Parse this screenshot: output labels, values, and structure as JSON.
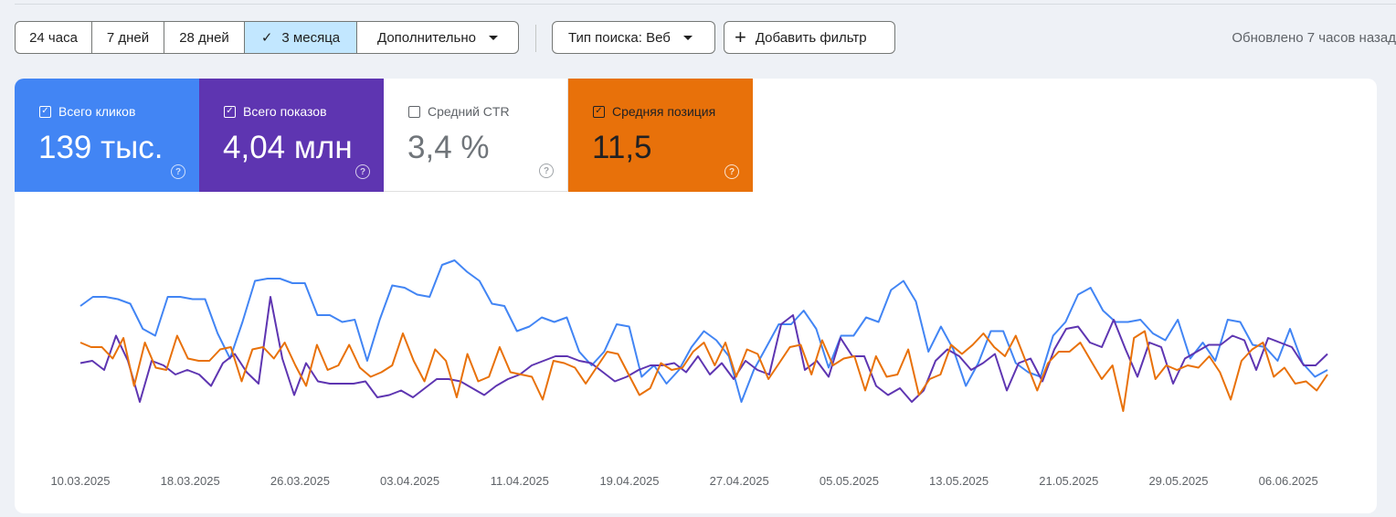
{
  "toolbar": {
    "date_ranges": [
      {
        "label": "24 часа",
        "active": false
      },
      {
        "label": "7 дней",
        "active": false
      },
      {
        "label": "28 дней",
        "active": false
      },
      {
        "label": "3 месяца",
        "active": true
      },
      {
        "label": "Дополнительно",
        "active": false,
        "dropdown": true
      }
    ],
    "search_type_label": "Тип поиска: Веб",
    "add_filter_label": "Добавить фильтр",
    "updated_text": "Обновлено 7 часов назад",
    "check_icon": "✓",
    "plus_icon": "+"
  },
  "metrics": {
    "clicks": {
      "label": "Всего кликов",
      "value": "139 тыс.",
      "checked": true,
      "color": "#4285f4"
    },
    "impressions": {
      "label": "Всего показов",
      "value": "4,04 млн",
      "checked": true,
      "color": "#5e35b1"
    },
    "ctr": {
      "label": "Средний CTR",
      "value": "3,4 %",
      "checked": false,
      "color": "#ffffff"
    },
    "position": {
      "label": "Средняя позиция",
      "value": "11,5",
      "checked": true,
      "color": "#e8710a"
    },
    "help_icon": "?",
    "check_mark": "✓"
  },
  "chart_data": {
    "type": "line",
    "x_tick_labels": [
      "10.03.2025",
      "18.03.2025",
      "26.03.2025",
      "03.04.2025",
      "11.04.2025",
      "19.04.2025",
      "27.04.2025",
      "05.05.2025",
      "13.05.2025",
      "21.05.2025",
      "29.05.2025",
      "06.06.2025"
    ],
    "series": [
      {
        "name": "Всего кликов",
        "color": "#4285f4",
        "values": [
          66,
          70,
          70,
          69,
          67,
          56,
          53,
          70,
          70,
          69,
          69,
          54,
          43,
          59,
          77,
          78,
          78,
          76,
          76,
          62,
          62,
          59,
          60,
          42,
          60,
          75,
          74,
          71,
          70,
          84,
          86,
          81,
          77,
          67,
          66,
          55,
          57,
          61,
          59,
          61,
          46,
          40,
          46,
          58,
          57,
          35,
          40,
          32,
          38,
          48,
          55,
          51,
          44,
          24,
          38,
          48,
          58,
          58,
          64,
          56,
          39,
          53,
          53,
          61,
          59,
          73,
          77,
          68,
          46,
          57,
          47,
          31,
          41,
          55,
          55,
          41,
          37,
          35,
          53,
          59,
          71,
          74,
          64,
          59,
          59,
          60,
          54,
          51,
          60,
          43,
          50,
          42,
          60,
          59,
          49,
          48,
          42,
          56,
          41,
          35,
          38
        ]
      },
      {
        "name": "Всего показов",
        "color": "#5e35b1",
        "values": [
          41,
          42,
          38,
          53,
          42,
          24,
          42,
          40,
          36,
          38,
          36,
          31,
          41,
          45,
          37,
          32,
          70,
          43,
          27,
          41,
          33,
          32,
          32,
          32,
          33,
          26,
          27,
          29,
          26,
          30,
          34,
          34,
          33,
          30,
          27,
          31,
          34,
          36,
          40,
          42,
          44,
          44,
          42,
          41,
          37,
          33,
          35,
          38,
          40,
          40,
          41,
          37,
          44,
          36,
          41,
          34,
          42,
          38,
          36,
          58,
          62,
          38,
          42,
          35,
          52,
          44,
          44,
          31,
          27,
          30,
          24,
          29,
          42,
          47,
          44,
          38,
          41,
          45,
          29,
          41,
          43,
          33,
          47,
          56,
          57,
          50,
          48,
          60,
          47,
          35,
          50,
          48,
          32,
          43,
          46,
          49,
          49,
          53,
          51,
          38,
          52,
          50,
          48,
          40,
          40,
          45
        ]
      },
      {
        "name": "Средняя позиция",
        "color": "#e8710a",
        "values": [
          50,
          48,
          48,
          43,
          52,
          31,
          50,
          39,
          38,
          53,
          43,
          42,
          42,
          47,
          48,
          33,
          47,
          48,
          43,
          50,
          40,
          31,
          49,
          38,
          40,
          49,
          39,
          35,
          37,
          40,
          54,
          42,
          33,
          47,
          42,
          26,
          45,
          33,
          35,
          48,
          37,
          36,
          35,
          25,
          42,
          41,
          39,
          32,
          39,
          46,
          45,
          36,
          27,
          30,
          41,
          38,
          39,
          46,
          50,
          40,
          50,
          35,
          47,
          45,
          34,
          41,
          48,
          49,
          36,
          51,
          40,
          43,
          44,
          29,
          44,
          35,
          36,
          47,
          27,
          34,
          36,
          49,
          45,
          49,
          54,
          48,
          44,
          53,
          41,
          29,
          41,
          46,
          46,
          50,
          42,
          34,
          40,
          20,
          52,
          55,
          34,
          40,
          38,
          40,
          39,
          44,
          37,
          25,
          42,
          47,
          50,
          35,
          39,
          32,
          33,
          29,
          36
        ]
      }
    ]
  }
}
